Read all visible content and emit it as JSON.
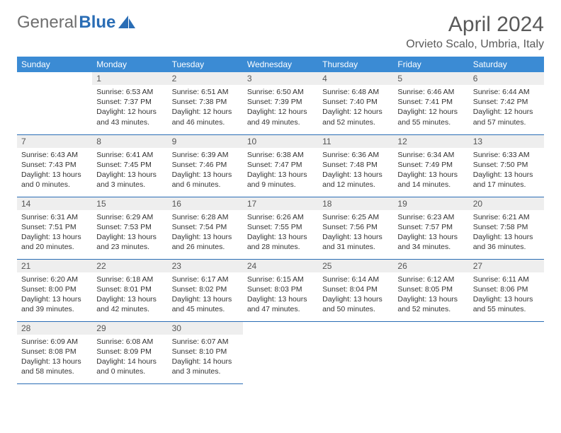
{
  "brand": {
    "general": "General",
    "blue": "Blue"
  },
  "title": "April 2024",
  "location": "Orvieto Scalo, Umbria, Italy",
  "weekdays": [
    "Sunday",
    "Monday",
    "Tuesday",
    "Wednesday",
    "Thursday",
    "Friday",
    "Saturday"
  ],
  "colors": {
    "header_bg": "#3b8bd4",
    "border": "#2a6db5",
    "daynum_bg": "#eeeeee",
    "text": "#333333"
  },
  "first_day_index": 1,
  "days": [
    {
      "n": 1,
      "sunrise": "6:53 AM",
      "sunset": "7:37 PM",
      "daylight": "12 hours and 43 minutes."
    },
    {
      "n": 2,
      "sunrise": "6:51 AM",
      "sunset": "7:38 PM",
      "daylight": "12 hours and 46 minutes."
    },
    {
      "n": 3,
      "sunrise": "6:50 AM",
      "sunset": "7:39 PM",
      "daylight": "12 hours and 49 minutes."
    },
    {
      "n": 4,
      "sunrise": "6:48 AM",
      "sunset": "7:40 PM",
      "daylight": "12 hours and 52 minutes."
    },
    {
      "n": 5,
      "sunrise": "6:46 AM",
      "sunset": "7:41 PM",
      "daylight": "12 hours and 55 minutes."
    },
    {
      "n": 6,
      "sunrise": "6:44 AM",
      "sunset": "7:42 PM",
      "daylight": "12 hours and 57 minutes."
    },
    {
      "n": 7,
      "sunrise": "6:43 AM",
      "sunset": "7:43 PM",
      "daylight": "13 hours and 0 minutes."
    },
    {
      "n": 8,
      "sunrise": "6:41 AM",
      "sunset": "7:45 PM",
      "daylight": "13 hours and 3 minutes."
    },
    {
      "n": 9,
      "sunrise": "6:39 AM",
      "sunset": "7:46 PM",
      "daylight": "13 hours and 6 minutes."
    },
    {
      "n": 10,
      "sunrise": "6:38 AM",
      "sunset": "7:47 PM",
      "daylight": "13 hours and 9 minutes."
    },
    {
      "n": 11,
      "sunrise": "6:36 AM",
      "sunset": "7:48 PM",
      "daylight": "13 hours and 12 minutes."
    },
    {
      "n": 12,
      "sunrise": "6:34 AM",
      "sunset": "7:49 PM",
      "daylight": "13 hours and 14 minutes."
    },
    {
      "n": 13,
      "sunrise": "6:33 AM",
      "sunset": "7:50 PM",
      "daylight": "13 hours and 17 minutes."
    },
    {
      "n": 14,
      "sunrise": "6:31 AM",
      "sunset": "7:51 PM",
      "daylight": "13 hours and 20 minutes."
    },
    {
      "n": 15,
      "sunrise": "6:29 AM",
      "sunset": "7:53 PM",
      "daylight": "13 hours and 23 minutes."
    },
    {
      "n": 16,
      "sunrise": "6:28 AM",
      "sunset": "7:54 PM",
      "daylight": "13 hours and 26 minutes."
    },
    {
      "n": 17,
      "sunrise": "6:26 AM",
      "sunset": "7:55 PM",
      "daylight": "13 hours and 28 minutes."
    },
    {
      "n": 18,
      "sunrise": "6:25 AM",
      "sunset": "7:56 PM",
      "daylight": "13 hours and 31 minutes."
    },
    {
      "n": 19,
      "sunrise": "6:23 AM",
      "sunset": "7:57 PM",
      "daylight": "13 hours and 34 minutes."
    },
    {
      "n": 20,
      "sunrise": "6:21 AM",
      "sunset": "7:58 PM",
      "daylight": "13 hours and 36 minutes."
    },
    {
      "n": 21,
      "sunrise": "6:20 AM",
      "sunset": "8:00 PM",
      "daylight": "13 hours and 39 minutes."
    },
    {
      "n": 22,
      "sunrise": "6:18 AM",
      "sunset": "8:01 PM",
      "daylight": "13 hours and 42 minutes."
    },
    {
      "n": 23,
      "sunrise": "6:17 AM",
      "sunset": "8:02 PM",
      "daylight": "13 hours and 45 minutes."
    },
    {
      "n": 24,
      "sunrise": "6:15 AM",
      "sunset": "8:03 PM",
      "daylight": "13 hours and 47 minutes."
    },
    {
      "n": 25,
      "sunrise": "6:14 AM",
      "sunset": "8:04 PM",
      "daylight": "13 hours and 50 minutes."
    },
    {
      "n": 26,
      "sunrise": "6:12 AM",
      "sunset": "8:05 PM",
      "daylight": "13 hours and 52 minutes."
    },
    {
      "n": 27,
      "sunrise": "6:11 AM",
      "sunset": "8:06 PM",
      "daylight": "13 hours and 55 minutes."
    },
    {
      "n": 28,
      "sunrise": "6:09 AM",
      "sunset": "8:08 PM",
      "daylight": "13 hours and 58 minutes."
    },
    {
      "n": 29,
      "sunrise": "6:08 AM",
      "sunset": "8:09 PM",
      "daylight": "14 hours and 0 minutes."
    },
    {
      "n": 30,
      "sunrise": "6:07 AM",
      "sunset": "8:10 PM",
      "daylight": "14 hours and 3 minutes."
    }
  ],
  "labels": {
    "sunrise": "Sunrise:",
    "sunset": "Sunset:",
    "daylight": "Daylight:"
  }
}
